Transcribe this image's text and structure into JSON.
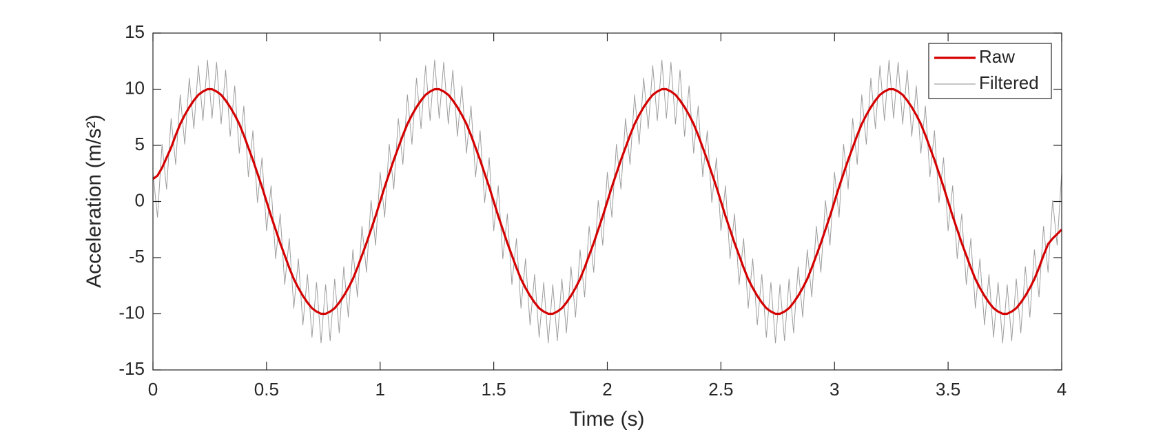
{
  "chart_data": {
    "type": "line",
    "xlabel": "Time (s)",
    "ylabel": "Acceleration (m/s²)",
    "xlim": [
      0,
      4
    ],
    "ylim": [
      -15,
      15
    ],
    "xticks": [
      0,
      0.5,
      1,
      1.5,
      2,
      2.5,
      3,
      3.5,
      4
    ],
    "yticks": [
      -15,
      -10,
      -5,
      0,
      5,
      10,
      15
    ],
    "legend": "upper right",
    "x": [
      0,
      0.02,
      0.04,
      0.06,
      0.08,
      0.1,
      0.12,
      0.14,
      0.16,
      0.18,
      0.2,
      0.22,
      0.24,
      0.26,
      0.28,
      0.3,
      0.32,
      0.34,
      0.36,
      0.38,
      0.4,
      0.42,
      0.44,
      0.46,
      0.48,
      0.5,
      0.52,
      0.54,
      0.56,
      0.58,
      0.6,
      0.62,
      0.64,
      0.66,
      0.68,
      0.7,
      0.72,
      0.74,
      0.76,
      0.78,
      0.8,
      0.82,
      0.84,
      0.86,
      0.88,
      0.9,
      0.92,
      0.94,
      0.96,
      0.98,
      1,
      1.02,
      1.04,
      1.06,
      1.08,
      1.1,
      1.12,
      1.14,
      1.16,
      1.18,
      1.2,
      1.22,
      1.24,
      1.26,
      1.28,
      1.3,
      1.32,
      1.34,
      1.36,
      1.38,
      1.4,
      1.42,
      1.44,
      1.46,
      1.48,
      1.5,
      1.52,
      1.54,
      1.56,
      1.58,
      1.6,
      1.62,
      1.64,
      1.66,
      1.68,
      1.7,
      1.72,
      1.74,
      1.76,
      1.78,
      1.8,
      1.82,
      1.84,
      1.86,
      1.88,
      1.9,
      1.92,
      1.94,
      1.96,
      1.98,
      2,
      2.02,
      2.04,
      2.06,
      2.08,
      2.1,
      2.12,
      2.14,
      2.16,
      2.18,
      2.2,
      2.22,
      2.24,
      2.26,
      2.28,
      2.3,
      2.32,
      2.34,
      2.36,
      2.38,
      2.4,
      2.42,
      2.44,
      2.46,
      2.48,
      2.5,
      2.52,
      2.54,
      2.56,
      2.58,
      2.6,
      2.62,
      2.64,
      2.66,
      2.68,
      2.7,
      2.72,
      2.74,
      2.76,
      2.78,
      2.8,
      2.82,
      2.84,
      2.86,
      2.88,
      2.9,
      2.92,
      2.94,
      2.96,
      2.98,
      3,
      3.02,
      3.04,
      3.06,
      3.08,
      3.1,
      3.12,
      3.14,
      3.16,
      3.18,
      3.2,
      3.22,
      3.24,
      3.26,
      3.28,
      3.3,
      3.32,
      3.34,
      3.36,
      3.38,
      3.4,
      3.42,
      3.44,
      3.46,
      3.48,
      3.5,
      3.52,
      3.54,
      3.56,
      3.58,
      3.6,
      3.62,
      3.64,
      3.66,
      3.68,
      3.7,
      3.72,
      3.74,
      3.76,
      3.78,
      3.8,
      3.82,
      3.84,
      3.86,
      3.88,
      3.9,
      3.92,
      3.94,
      3.96,
      3.98,
      4
    ],
    "series": [
      {
        "name": "Raw",
        "color": "#d40000",
        "values": [
          2,
          2.3,
          3,
          3.9,
          4.8,
          5.9,
          6.9,
          7.7,
          8.4,
          9,
          9.5,
          9.8,
          10,
          10,
          9.8,
          9.5,
          9,
          8.4,
          7.7,
          6.9,
          5.9,
          4.8,
          3.7,
          2.5,
          1.3,
          0,
          -1.3,
          -2.5,
          -3.7,
          -4.8,
          -5.9,
          -6.9,
          -7.7,
          -8.4,
          -9,
          -9.5,
          -9.8,
          -10,
          -10,
          -9.8,
          -9.5,
          -9,
          -8.4,
          -7.7,
          -6.9,
          -5.9,
          -4.8,
          -3.7,
          -2.5,
          -1.3,
          0,
          1.3,
          2.5,
          3.7,
          4.8,
          5.9,
          6.9,
          7.7,
          8.4,
          9,
          9.5,
          9.8,
          10,
          10,
          9.8,
          9.5,
          9,
          8.4,
          7.7,
          6.9,
          5.9,
          4.8,
          3.7,
          2.5,
          1.3,
          0,
          -1.3,
          -2.5,
          -3.7,
          -4.8,
          -5.9,
          -6.9,
          -7.7,
          -8.4,
          -9,
          -9.5,
          -9.8,
          -10,
          -10,
          -9.8,
          -9.5,
          -9,
          -8.4,
          -7.7,
          -6.9,
          -5.9,
          -4.8,
          -3.7,
          -2.5,
          -1.3,
          0,
          1.3,
          2.5,
          3.7,
          4.8,
          5.9,
          6.9,
          7.7,
          8.4,
          9,
          9.5,
          9.8,
          10,
          10,
          9.8,
          9.5,
          9,
          8.4,
          7.7,
          6.9,
          5.9,
          4.8,
          3.7,
          2.5,
          1.3,
          0,
          -1.3,
          -2.5,
          -3.7,
          -4.8,
          -5.9,
          -6.9,
          -7.7,
          -8.4,
          -9,
          -9.5,
          -9.8,
          -10,
          -10,
          -9.8,
          -9.5,
          -9,
          -8.4,
          -7.7,
          -6.9,
          -5.9,
          -4.8,
          -3.7,
          -2.5,
          -1.3,
          0,
          1.3,
          2.5,
          3.7,
          4.8,
          5.9,
          6.9,
          7.7,
          8.4,
          9,
          9.5,
          9.8,
          10,
          10,
          9.8,
          9.5,
          9,
          8.4,
          7.7,
          6.9,
          5.9,
          4.8,
          3.7,
          2.5,
          1.3,
          0,
          -1.3,
          -2.5,
          -3.7,
          -4.8,
          -5.9,
          -6.9,
          -7.7,
          -8.4,
          -9,
          -9.5,
          -9.8,
          -10,
          -10,
          -9.8,
          -9.5,
          -9,
          -8.4,
          -7.7,
          -6.9,
          -5.9,
          -4.8,
          -3.8,
          -3.3,
          -2.9,
          -2.5
        ]
      },
      {
        "name": "Filtered",
        "color": "#8c8c8c",
        "values": [
          2.6,
          -1.4,
          5.1,
          1.1,
          7.4,
          3.3,
          9.5,
          5.1,
          11.0,
          6.5,
          12.1,
          7.2,
          12.6,
          7.4,
          12.4,
          6.9,
          11.7,
          5.8,
          10.3,
          4.3,
          8.5,
          2.2,
          6.3,
          -0.1,
          3.9,
          -2.6,
          1.4,
          -5.1,
          -1.1,
          -7.4,
          -3.3,
          -9.5,
          -5.1,
          -11.0,
          -6.5,
          -12.1,
          -7.2,
          -12.6,
          -7.4,
          -12.4,
          -6.9,
          -11.7,
          -5.8,
          -10.3,
          -4.3,
          -8.5,
          -2.2,
          -6.3,
          0.1,
          -3.9,
          2.6,
          -1.4,
          5.1,
          1.1,
          7.4,
          3.3,
          9.5,
          5.1,
          11.0,
          6.5,
          12.1,
          7.2,
          12.6,
          7.4,
          12.4,
          6.9,
          11.7,
          5.8,
          10.3,
          4.3,
          8.5,
          2.2,
          6.3,
          -0.1,
          3.9,
          -2.6,
          1.4,
          -5.1,
          -1.1,
          -7.4,
          -3.3,
          -9.5,
          -5.1,
          -11.0,
          -6.5,
          -12.1,
          -7.2,
          -12.6,
          -7.4,
          -12.4,
          -6.9,
          -11.7,
          -5.8,
          -10.3,
          -4.3,
          -8.5,
          -2.2,
          -6.3,
          0.1,
          -3.9,
          2.6,
          -1.4,
          5.1,
          1.1,
          7.4,
          3.3,
          9.5,
          5.1,
          11.0,
          6.5,
          12.1,
          7.2,
          12.6,
          7.4,
          12.4,
          6.9,
          11.7,
          5.8,
          10.3,
          4.3,
          8.5,
          2.2,
          6.3,
          -0.1,
          3.9,
          -2.6,
          1.4,
          -5.1,
          -1.1,
          -7.4,
          -3.3,
          -9.5,
          -5.1,
          -11.0,
          -6.5,
          -12.1,
          -7.2,
          -12.6,
          -7.4,
          -12.4,
          -6.9,
          -11.7,
          -5.8,
          -10.3,
          -4.3,
          -8.5,
          -2.2,
          -6.3,
          0.1,
          -3.9,
          2.6,
          -1.4,
          5.1,
          1.1,
          7.4,
          3.3,
          9.5,
          5.1,
          11.0,
          6.5,
          12.1,
          7.2,
          12.6,
          7.4,
          12.4,
          6.9,
          11.7,
          5.8,
          10.3,
          4.3,
          8.5,
          2.2,
          6.3,
          -0.1,
          3.9,
          -2.6,
          1.4,
          -5.1,
          -1.1,
          -7.4,
          -3.3,
          -9.5,
          -5.1,
          -11.0,
          -6.5,
          -12.1,
          -7.2,
          -12.6,
          -7.4,
          -12.4,
          -6.9,
          -11.7,
          -5.8,
          -10.3,
          -4.3,
          -8.5,
          -2.2,
          -6.3,
          0.1,
          -3.9,
          2.6
        ]
      }
    ]
  }
}
